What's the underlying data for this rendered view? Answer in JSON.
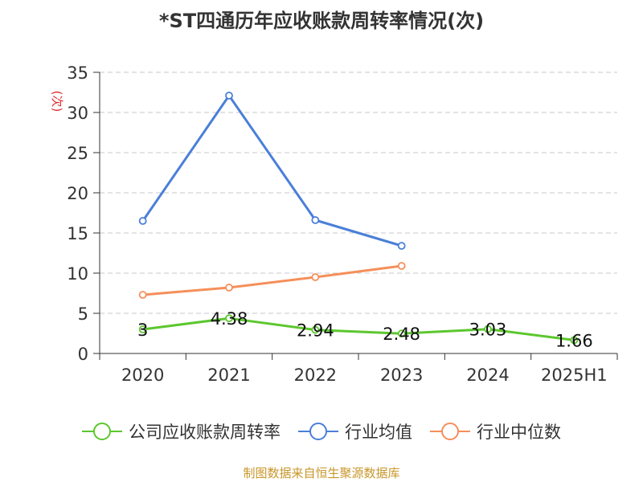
{
  "chart_data": {
    "type": "line",
    "title": "*ST四通历年应收账款周转率情况(次)",
    "ylabel": "(次)",
    "xlabel": "",
    "categories": [
      "2020",
      "2021",
      "2022",
      "2023",
      "2024",
      "2025H1"
    ],
    "ylim": [
      0,
      35
    ],
    "yticks": [
      0,
      5,
      10,
      15,
      20,
      25,
      30,
      35
    ],
    "grid": true,
    "legend_position": "bottom",
    "series": [
      {
        "name": "公司应收账款周转率",
        "color": "#5cc72f",
        "values": [
          3.0,
          4.38,
          2.94,
          2.48,
          3.03,
          1.66
        ],
        "labels": [
          "3",
          "4.38",
          "2.94",
          "2.48",
          "3.03",
          "1.66"
        ]
      },
      {
        "name": "行业均值",
        "color": "#4a7fd8",
        "values": [
          16.5,
          32.1,
          16.6,
          13.4,
          null,
          null
        ]
      },
      {
        "name": "行业中位数",
        "color": "#f58f5a",
        "values": [
          7.3,
          8.2,
          9.5,
          10.9,
          null,
          null
        ]
      }
    ]
  },
  "source_note": "制图数据来自恒生聚源数据库"
}
